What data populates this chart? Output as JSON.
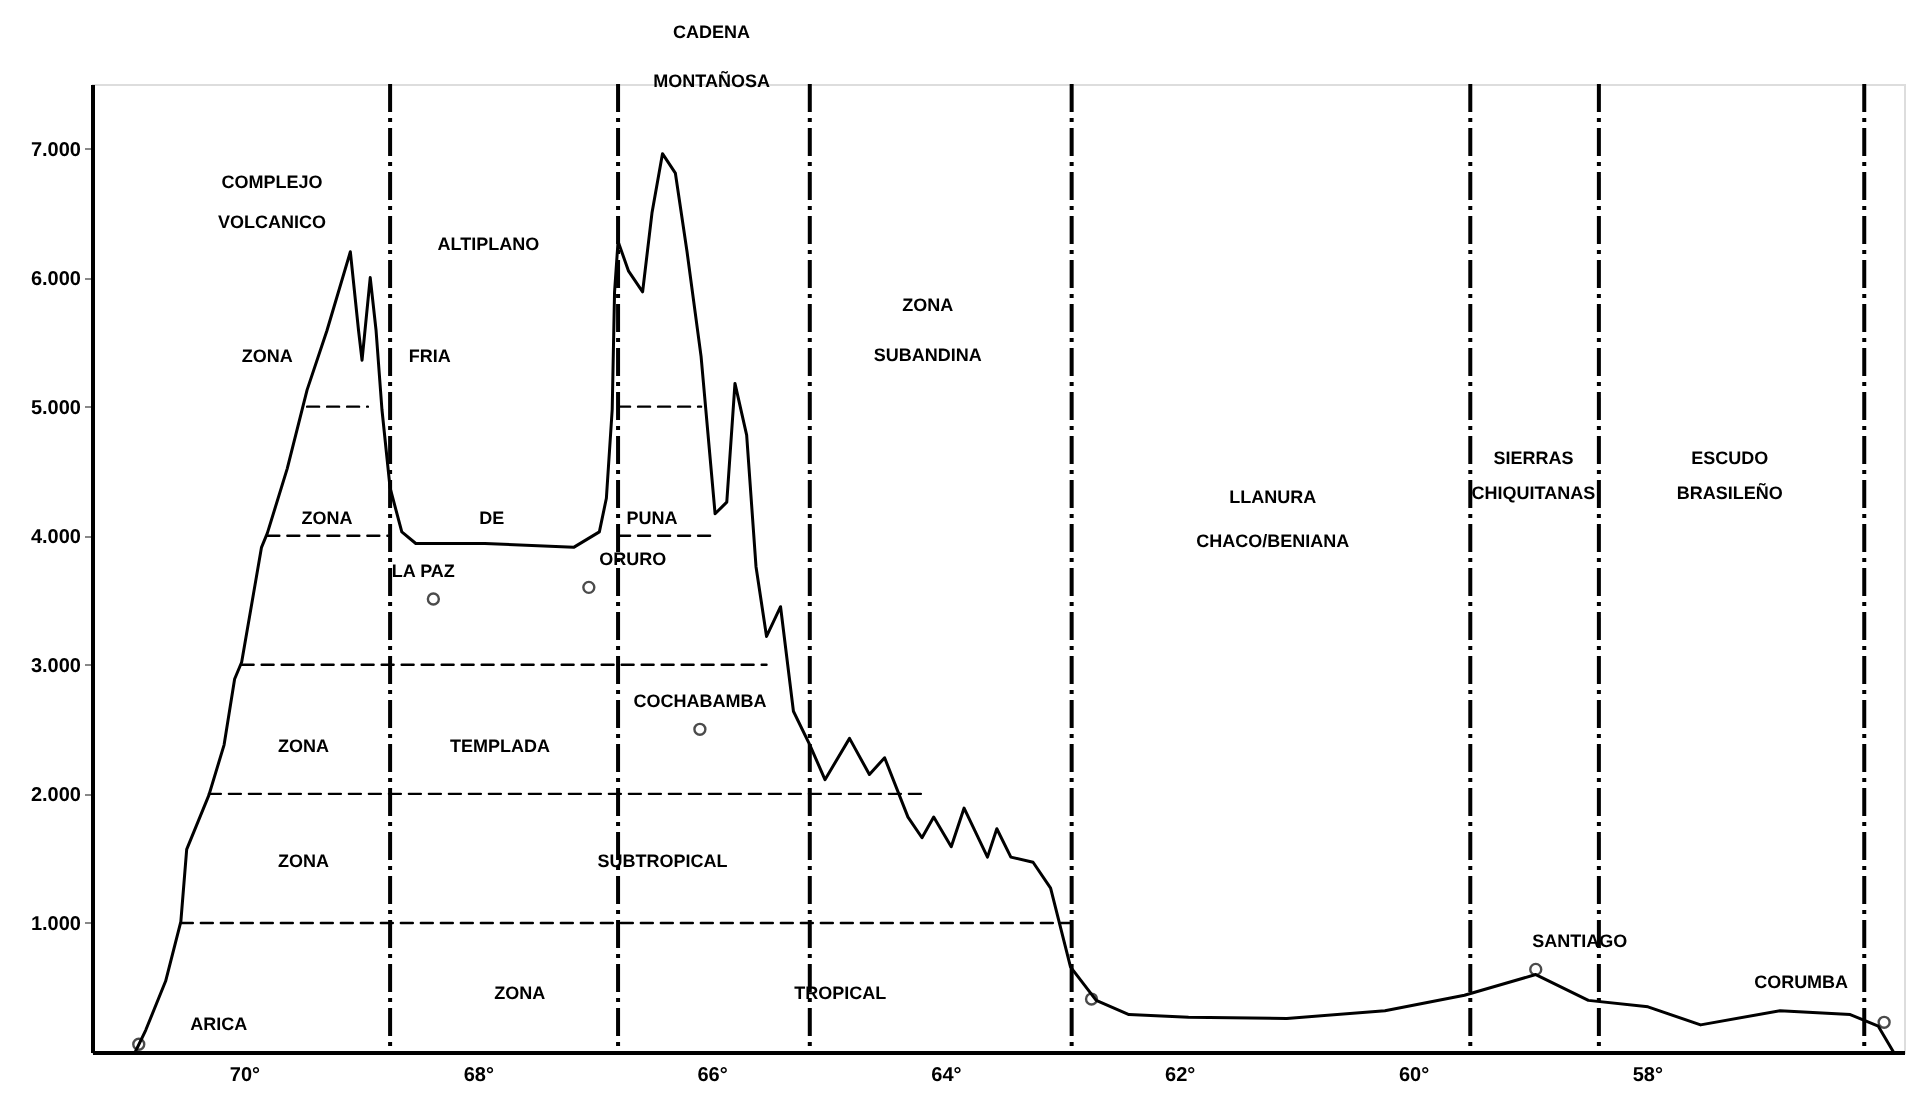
{
  "chart_data": {
    "type": "line",
    "xlim": [
      71.3,
      55.8
    ],
    "ylim": [
      0,
      7500
    ],
    "xticks": [
      {
        "value": 70,
        "label": "70°"
      },
      {
        "value": 68,
        "label": "68°"
      },
      {
        "value": 66,
        "label": "66°"
      },
      {
        "value": 64,
        "label": "64°"
      },
      {
        "value": 62,
        "label": "62°"
      },
      {
        "value": 60,
        "label": "60°"
      },
      {
        "value": 58,
        "label": "58°"
      }
    ],
    "yticks": [
      {
        "value": 1000,
        "label": "1.000"
      },
      {
        "value": 2000,
        "label": "2.000"
      },
      {
        "value": 3000,
        "label": "3.000"
      },
      {
        "value": 4000,
        "label": "4.000"
      },
      {
        "value": 5000,
        "label": "5.000"
      },
      {
        "value": 6000,
        "label": "6.000"
      },
      {
        "value": 7000,
        "label": "7.000"
      }
    ],
    "grid": false,
    "series": [
      {
        "color": "#000000",
        "line_style": "solid",
        "x": [
          70.93,
          70.84,
          70.67,
          70.54,
          70.49,
          70.3,
          70.17,
          70.08,
          70.02,
          69.85,
          69.8,
          69.63,
          69.46,
          69.29,
          69.09,
          69.02,
          68.99,
          68.92,
          68.87,
          68.82,
          68.75,
          68.65,
          68.53,
          67.94,
          67.18,
          66.96,
          66.9,
          66.85,
          66.83,
          66.8,
          66.71,
          66.59,
          66.51,
          66.42,
          66.31,
          66.21,
          66.09,
          65.97,
          65.87,
          65.8,
          65.7,
          65.62,
          65.53,
          65.41,
          65.3,
          65.16,
          65.03,
          64.82,
          64.65,
          64.52,
          64.32,
          64.2,
          64.1,
          63.95,
          63.84,
          63.64,
          63.56,
          63.44,
          63.25,
          63.1,
          62.93,
          62.71,
          62.43,
          61.92,
          61.08,
          60.24,
          59.56,
          58.95,
          58.5,
          57.99,
          57.54,
          56.86,
          56.26,
          56.02,
          55.89
        ],
        "values": [
          0,
          170,
          550,
          1010,
          1570,
          1990,
          2380,
          2890,
          3020,
          3910,
          4020,
          4520,
          5130,
          5590,
          6200,
          5590,
          5360,
          6000,
          5590,
          4980,
          4370,
          4030,
          3940,
          3940,
          3910,
          4030,
          4290,
          4980,
          5890,
          6280,
          6050,
          5890,
          6500,
          6960,
          6810,
          6200,
          5390,
          4170,
          4260,
          5180,
          4780,
          3760,
          3220,
          3450,
          2640,
          2380,
          2110,
          2430,
          2150,
          2280,
          1820,
          1660,
          1820,
          1590,
          1890,
          1510,
          1730,
          1510,
          1470,
          1270,
          660,
          400,
          290,
          270,
          260,
          320,
          440,
          600,
          400,
          350,
          210,
          320,
          290,
          200,
          0
        ]
      },
      {
        "color": "#000000",
        "line_style": "dashed",
        "x": [
          70.54,
          62.93
        ],
        "values": [
          1000,
          1000
        ]
      },
      {
        "color": "#000000",
        "line_style": "dashed",
        "x": [
          70.3,
          64.15
        ],
        "values": [
          2000,
          2000
        ]
      },
      {
        "color": "#000000",
        "line_style": "dashed",
        "x": [
          70.02,
          65.53
        ],
        "values": [
          3000,
          3000
        ]
      },
      {
        "color": "#000000",
        "line_style": "dashed",
        "x": [
          69.8,
          68.77
        ],
        "values": [
          4000,
          4000
        ]
      },
      {
        "color": "#000000",
        "line_style": "dashed",
        "x": [
          66.8,
          65.97
        ],
        "values": [
          4000,
          4000
        ]
      },
      {
        "color": "#000000",
        "line_style": "dashed",
        "x": [
          69.46,
          68.94
        ],
        "values": [
          5000,
          5000
        ]
      },
      {
        "color": "#000000",
        "line_style": "dashed",
        "x": [
          66.8,
          66.09
        ],
        "values": [
          5000,
          5000
        ]
      },
      {
        "type": "scatter",
        "color": "#000000",
        "marker": "circle",
        "x": [
          70.9,
          68.38,
          67.05,
          66.1,
          62.75,
          58.95,
          55.97
        ],
        "values": [
          60,
          3510,
          3600,
          2500,
          410,
          640,
          230
        ]
      }
    ],
    "ref_lines": [
      {
        "axis": "x",
        "value": 68.75,
        "line_style": "dashed",
        "color": "#000000"
      },
      {
        "axis": "x",
        "value": 66.8,
        "line_style": "dashed",
        "color": "#000000"
      },
      {
        "axis": "x",
        "value": 65.16,
        "line_style": "dashed",
        "color": "#000000"
      },
      {
        "axis": "x",
        "value": 62.92,
        "line_style": "dashed",
        "color": "#000000"
      },
      {
        "axis": "x",
        "value": 59.51,
        "line_style": "dashed",
        "color": "#000000"
      },
      {
        "axis": "x",
        "value": 58.41,
        "line_style": "dashed",
        "color": "#000000"
      },
      {
        "axis": "x",
        "value": 56.14,
        "line_style": "dashed",
        "color": "#000000"
      }
    ],
    "annotations": [
      "CADENA",
      "MONTAÑOSA",
      "COMPLEJO",
      "VOLCANICO",
      "ALTIPLANO",
      "ZONA",
      "SUBANDINA",
      "LLANURA",
      "CHACO/BENIANA",
      "SIERRAS",
      "CHIQUITANAS",
      "ESCUDO",
      "BRASILEÑO",
      "ZONA",
      "FRIA",
      "ZONA",
      "DE",
      "PUNA",
      "ZONA",
      "TEMPLADA",
      "ZONA",
      "SUBTROPICAL",
      "ZONA",
      "TROPICAL",
      {
        "text": "LA PAZ",
        "x": 68.38,
        "y": 3510
      },
      {
        "text": "ORURO",
        "x": 67.05,
        "y": 3600
      },
      {
        "text": "COCHABAMBA",
        "x": 66.1,
        "y": 2500
      },
      {
        "text": "ARICA",
        "x": 70.9,
        "y": 60
      },
      {
        "text": "SANTIAGO",
        "x": 58.95,
        "y": 640
      },
      {
        "text": "CORUMBA",
        "x": 55.97,
        "y": 230
      }
    ]
  }
}
